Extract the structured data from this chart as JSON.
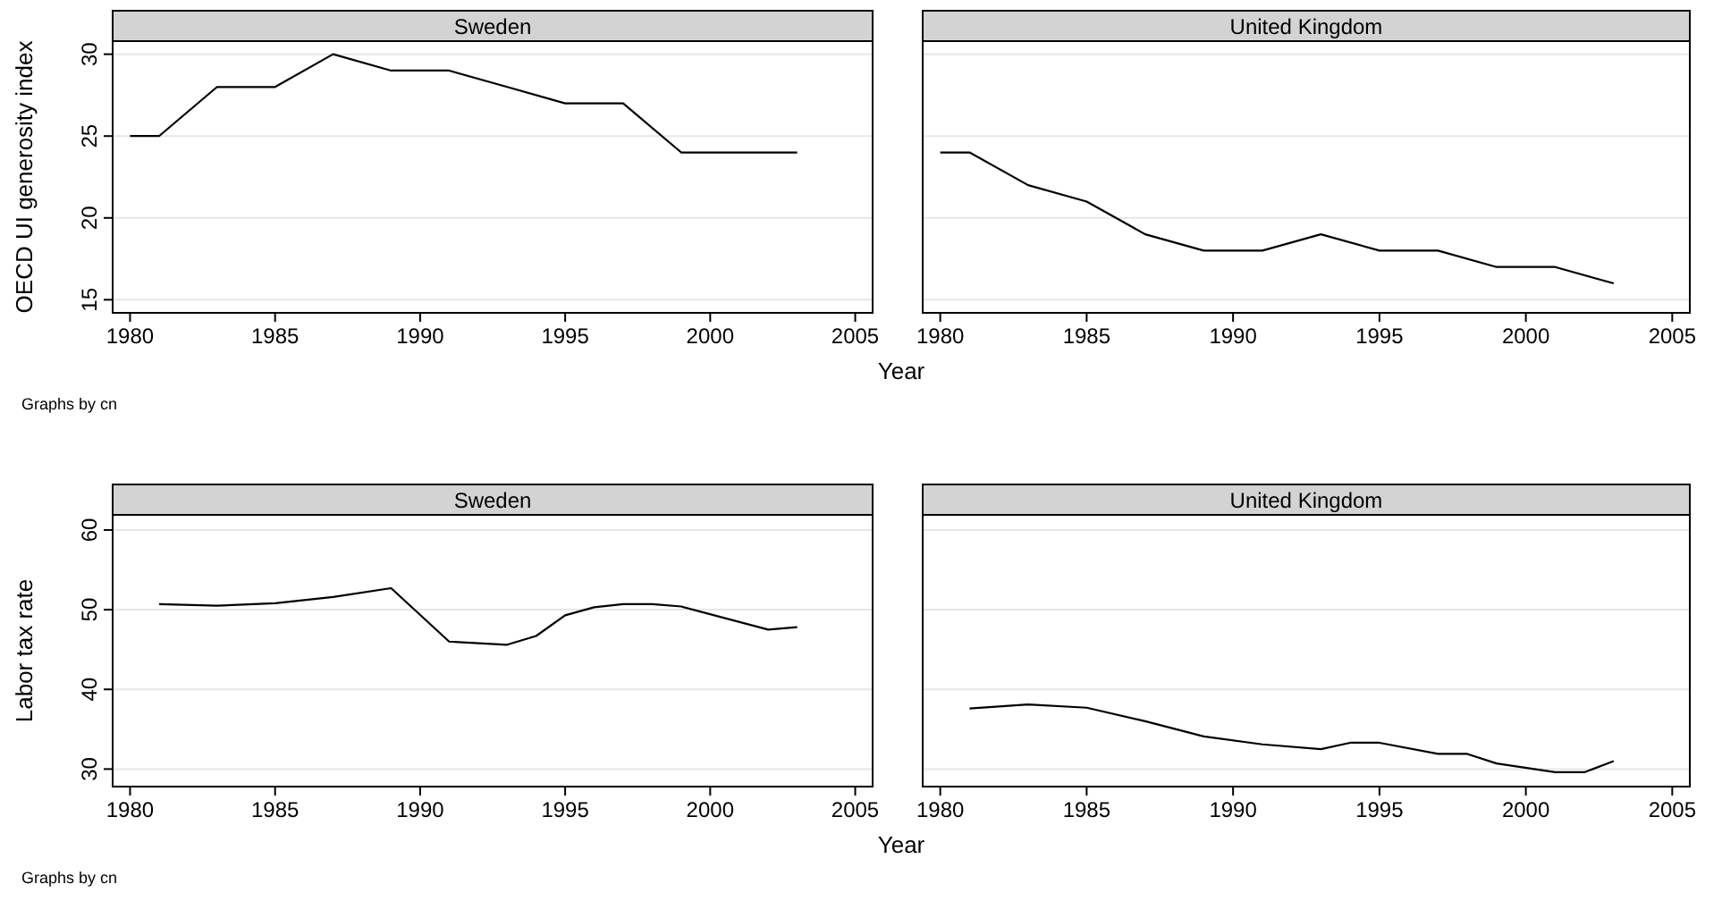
{
  "chart_data": [
    {
      "type": "line",
      "title": "Sweden",
      "ylabel": "OECD UI generosity index",
      "xlabel": "Year",
      "annotations": [
        "Graphs by cn"
      ],
      "x": [
        1980,
        1981,
        1983,
        1985,
        1987,
        1989,
        1991,
        1993,
        1995,
        1997,
        1999,
        2001,
        2003
      ],
      "series": [
        {
          "color": "#000000",
          "values": [
            25,
            25,
            28,
            28,
            30,
            29,
            29,
            28,
            27,
            27,
            24,
            24,
            24
          ]
        }
      ],
      "xlim": [
        1979.4,
        2005.6
      ],
      "xticks": [
        1980,
        1985,
        1990,
        1995,
        2000,
        2005
      ],
      "ylim": [
        14.2,
        30.8
      ],
      "yticks": [
        15,
        20,
        25,
        30
      ],
      "grid": "y"
    },
    {
      "type": "line",
      "title": "United Kingdom",
      "x": [
        1980,
        1981,
        1983,
        1985,
        1987,
        1989,
        1991,
        1993,
        1995,
        1997,
        1999,
        2001,
        2003
      ],
      "series": [
        {
          "color": "#000000",
          "values": [
            24,
            24,
            22,
            21,
            19,
            18,
            18,
            19,
            18,
            18,
            17,
            17,
            16
          ]
        }
      ],
      "xlim": [
        1979.4,
        2005.6
      ],
      "xticks": [
        1980,
        1985,
        1990,
        1995,
        2000,
        2005
      ],
      "ylim": [
        14.2,
        30.8
      ],
      "yticks": [
        15,
        20,
        25,
        30
      ],
      "grid": "y",
      "tick_labels": "x"
    },
    {
      "type": "line",
      "title": "Sweden",
      "ylabel": "Labor tax rate",
      "xlabel": "Year",
      "annotations": [
        "Graphs by cn"
      ],
      "x": [
        1981,
        1983,
        1985,
        1987,
        1989,
        1991,
        1993,
        1994,
        1995,
        1996,
        1997,
        1998,
        1999,
        2002,
        2003
      ],
      "series": [
        {
          "color": "#000000",
          "values": [
            50.7,
            50.5,
            50.8,
            51.6,
            52.7,
            46.0,
            45.6,
            46.7,
            49.3,
            50.3,
            50.7,
            50.7,
            50.4,
            47.5,
            47.8
          ]
        }
      ],
      "xlim": [
        1979.4,
        2005.6
      ],
      "xticks": [
        1980,
        1985,
        1990,
        1995,
        2000,
        2005
      ],
      "ylim": [
        27.8,
        61.9
      ],
      "yticks": [
        30,
        40,
        50,
        60
      ],
      "grid": "y"
    },
    {
      "type": "line",
      "title": "United Kingdom",
      "x": [
        1981,
        1983,
        1985,
        1987,
        1989,
        1991,
        1993,
        1994,
        1995,
        1997,
        1998,
        1999,
        2001,
        2002,
        2003
      ],
      "series": [
        {
          "color": "#000000",
          "values": [
            37.6,
            38.1,
            37.7,
            36.0,
            34.1,
            33.1,
            32.5,
            33.3,
            33.3,
            31.9,
            31.9,
            30.7,
            29.6,
            29.6,
            31.0
          ]
        }
      ],
      "xlim": [
        1979.4,
        2005.6
      ],
      "xticks": [
        1980,
        1985,
        1990,
        1995,
        2000,
        2005
      ],
      "ylim": [
        27.8,
        61.9
      ],
      "yticks": [
        30,
        40,
        50,
        60
      ],
      "grid": "y",
      "tick_labels": "x"
    }
  ]
}
